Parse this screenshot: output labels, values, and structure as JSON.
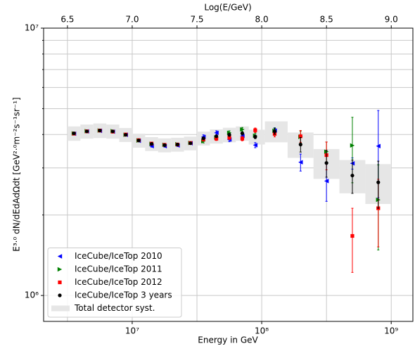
{
  "chart_data": {
    "type": "errorbar",
    "xlabel": "Energy in GeV",
    "x2label": "Log(E/GeV)",
    "ylabel": "E³·⁰ dN/dEdAdΩdt [GeV²·⁰m⁻²s⁻¹sr⁻¹]",
    "xscale": "log",
    "yscale": "log",
    "xlim": [
      2070000,
      1470000000
    ],
    "x2lim": [
      6.316,
      9.167
    ],
    "ylim": [
      800000,
      10000000
    ],
    "xticks": [
      {
        "value": 10000000,
        "label": "10⁷"
      },
      {
        "value": 100000000,
        "label": "10⁸"
      },
      {
        "value": 1000000000,
        "label": "10⁹"
      }
    ],
    "x2ticks": [
      6.5,
      {
        "value": 7.0,
        "label": "7.0"
      },
      7.5,
      {
        "value": 8.0,
        "label": "8.0"
      },
      8.5,
      {
        "value": 9.0,
        "label": "9.0"
      }
    ],
    "yticks": [
      {
        "value": 1000000,
        "label": "10⁶"
      },
      {
        "value": 10000000,
        "label": "10⁷"
      }
    ],
    "yminorticks": [
      2000000,
      3000000,
      4000000,
      5000000,
      6000000,
      7000000,
      8000000,
      9000000
    ],
    "grid": true,
    "legend": "lower left",
    "x": [
      3548134,
      4466836,
      5623413,
      7079458,
      8912509,
      11220185,
      14125375,
      17782794,
      22387211,
      28183829,
      35481339,
      44668359,
      56234133,
      70794578,
      89125094,
      125892541,
      199526231,
      316227766,
      501187234,
      794328235
    ],
    "series": [
      {
        "name": "IceCube/IceTop 2010",
        "color": "#0000ff",
        "marker": "triangle-left",
        "values": [
          4030000,
          4110000,
          4130000,
          4100000,
          3990000,
          3790000,
          3620000,
          3620000,
          3640000,
          3710000,
          3920000,
          4060000,
          3830000,
          3950000,
          3650000,
          4140000,
          3150000,
          2680000,
          3120000,
          3620000
        ],
        "errors": [
          30000,
          30000,
          30000,
          30000,
          30000,
          30000,
          30000,
          30000,
          30000,
          40000,
          70000,
          70000,
          70000,
          70000,
          80000,
          100000,
          230000,
          430000,
          150000,
          1300000
        ]
      },
      {
        "name": "IceCube/IceTop 2011",
        "color": "#008000",
        "marker": "triangle-right",
        "values": [
          4040000,
          4120000,
          4140000,
          4120000,
          3990000,
          3800000,
          3690000,
          3660000,
          3680000,
          3720000,
          3780000,
          3900000,
          4060000,
          4180000,
          3960000,
          4130000,
          3920000,
          3450000,
          3640000,
          2280000
        ],
        "errors": [
          30000,
          30000,
          30000,
          30000,
          30000,
          30000,
          30000,
          30000,
          30000,
          40000,
          60000,
          60000,
          70000,
          70000,
          80000,
          100000,
          200000,
          300000,
          1000000,
          800000
        ]
      },
      {
        "name": "IceCube/IceTop 2012",
        "color": "#ff0000",
        "marker": "square",
        "values": [
          4030000,
          4110000,
          4140000,
          4100000,
          4000000,
          3810000,
          3700000,
          3660000,
          3670000,
          3720000,
          3840000,
          3860000,
          3900000,
          3860000,
          4150000,
          4020000,
          3940000,
          3350000,
          1670000,
          2120000
        ],
        "errors": [
          30000,
          30000,
          30000,
          30000,
          30000,
          30000,
          30000,
          30000,
          30000,
          40000,
          60000,
          60000,
          70000,
          70000,
          80000,
          100000,
          200000,
          400000,
          450000,
          600000
        ]
      },
      {
        "name": "IceCube/IceTop 3 years",
        "color": "#000000",
        "marker": "circle",
        "values": [
          4040000,
          4110000,
          4140000,
          4110000,
          3990000,
          3800000,
          3690000,
          3650000,
          3670000,
          3710000,
          3870000,
          3940000,
          3990000,
          4040000,
          3920000,
          4110000,
          3670000,
          3130000,
          2810000,
          2650000
        ],
        "errors": [
          30000,
          30000,
          30000,
          30000,
          30000,
          30000,
          30000,
          30000,
          30000,
          30000,
          40000,
          40000,
          50000,
          50000,
          60000,
          100000,
          230000,
          360000,
          400000,
          530000
        ]
      }
    ],
    "band": {
      "name": "Total detector syst.",
      "color": "#e6e6e6",
      "errors": [
        250000,
        250000,
        260000,
        250000,
        240000,
        230000,
        220000,
        220000,
        220000,
        220000,
        230000,
        240000,
        250000,
        250000,
        250000,
        370000,
        400000,
        400000,
        400000,
        450000
      ]
    }
  }
}
